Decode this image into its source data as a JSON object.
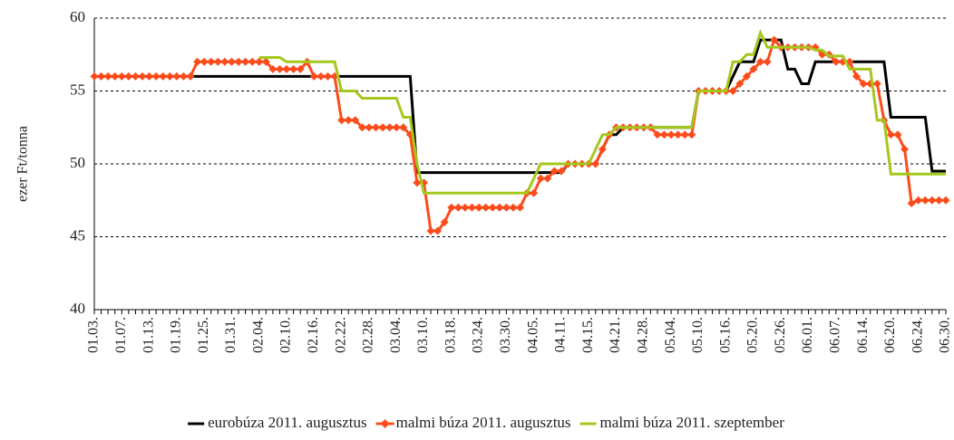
{
  "chart_data": {
    "type": "line",
    "y_label": "ezer Ft/tonna",
    "categories": [
      "01.03.",
      null,
      null,
      null,
      "01.07.",
      null,
      null,
      null,
      "01.13.",
      null,
      null,
      null,
      "01.19.",
      null,
      null,
      null,
      "01.25.",
      null,
      null,
      null,
      "01.31.",
      null,
      null,
      null,
      "02.04.",
      null,
      null,
      null,
      "02.10.",
      null,
      null,
      null,
      "02.16.",
      null,
      null,
      null,
      "02.22.",
      null,
      null,
      null,
      "02.28.",
      null,
      null,
      null,
      "03.04.",
      null,
      null,
      null,
      "03.10.",
      null,
      null,
      null,
      "03.18.",
      null,
      null,
      null,
      "03.24.",
      null,
      null,
      null,
      "03.30.",
      null,
      null,
      null,
      "04.05.",
      null,
      null,
      null,
      "04.11.",
      null,
      null,
      null,
      "04.15.",
      null,
      null,
      null,
      "04.21.",
      null,
      null,
      null,
      "04.28.",
      null,
      null,
      null,
      "05.04.",
      null,
      null,
      null,
      "05.10.",
      null,
      null,
      null,
      "05.16.",
      null,
      null,
      null,
      "05.20.",
      null,
      null,
      null,
      "05.26.",
      null,
      null,
      null,
      "06.01.",
      null,
      null,
      null,
      "06.07.",
      null,
      null,
      null,
      "06.14.",
      null,
      null,
      null,
      "06.20.",
      null,
      null,
      null,
      "06.24.",
      null,
      null,
      null,
      "06.30."
    ],
    "series": [
      {
        "name": "eurobúza 2011. augusztus",
        "color": "#000000",
        "width": 3,
        "values": [
          56,
          56,
          56,
          56,
          56,
          56,
          56,
          56,
          56,
          56,
          56,
          56,
          56,
          56,
          56,
          56,
          56,
          56,
          56,
          56,
          56,
          56,
          56,
          56,
          56,
          56,
          56,
          56,
          56,
          56,
          56,
          56,
          56,
          56,
          56,
          56,
          56,
          56,
          56,
          56,
          56,
          56,
          56,
          56,
          56,
          56,
          56,
          49.4,
          49.4,
          49.4,
          49.4,
          49.4,
          49.4,
          49.4,
          49.4,
          49.4,
          49.4,
          49.4,
          49.4,
          49.4,
          49.4,
          49.4,
          49.4,
          49.4,
          49.4,
          49.4,
          49.4,
          49.4,
          49.4,
          50,
          50,
          50,
          50,
          50,
          51,
          52,
          52,
          52.5,
          52.5,
          52.5,
          52.5,
          52.5,
          52.5,
          52.5,
          52.5,
          52.5,
          52.5,
          52.5,
          55,
          55,
          55,
          55,
          55,
          56,
          57,
          57,
          57,
          58.5,
          58.5,
          58.5,
          58.5,
          56.5,
          56.5,
          55.5,
          55.5,
          57,
          57,
          57,
          57,
          57,
          57,
          57,
          57,
          57,
          57,
          57,
          53.2,
          53.2,
          53.2,
          53.2,
          53.2,
          53.2,
          49.5,
          49.5,
          49.5
        ]
      },
      {
        "name": "malmi búza 2011. augusztus",
        "color": "#fc4c1c",
        "width": 3,
        "marker": "diamond",
        "values": [
          56,
          56,
          56,
          56,
          56,
          56,
          56,
          56,
          56,
          56,
          56,
          56,
          56,
          56,
          56,
          57,
          57,
          57,
          57,
          57,
          57,
          57,
          57,
          57,
          57,
          57,
          56.5,
          56.5,
          56.5,
          56.5,
          56.5,
          57,
          56,
          56,
          56,
          56,
          53,
          53,
          53,
          52.5,
          52.5,
          52.5,
          52.5,
          52.5,
          52.5,
          52.5,
          52,
          48.7,
          48.7,
          45.4,
          45.4,
          46,
          47,
          47,
          47,
          47,
          47,
          47,
          47,
          47,
          47,
          47,
          47,
          48,
          48,
          49,
          49,
          49.5,
          49.5,
          50,
          50,
          50,
          50,
          50,
          51,
          52,
          52.5,
          52.5,
          52.5,
          52.5,
          52.5,
          52.5,
          52,
          52,
          52,
          52,
          52,
          52,
          55,
          55,
          55,
          55,
          55,
          55,
          55.5,
          56,
          56.5,
          57,
          57,
          58.5,
          58,
          58,
          58,
          58,
          58,
          58,
          57.5,
          57.5,
          57,
          57,
          57,
          56,
          55.5,
          55.5,
          55.5,
          53,
          52,
          52,
          51,
          47.3,
          47.5,
          47.5,
          47.5,
          47.5,
          47.5
        ]
      },
      {
        "name": "malmi búza 2011. szeptember",
        "color": "#a4c81c",
        "width": 3,
        "values": [
          null,
          null,
          null,
          null,
          null,
          null,
          null,
          null,
          null,
          null,
          null,
          null,
          null,
          null,
          null,
          null,
          null,
          null,
          null,
          null,
          null,
          null,
          null,
          null,
          57.3,
          57.3,
          57.3,
          57.3,
          57,
          57,
          57,
          57,
          57,
          57,
          57,
          57,
          55,
          55,
          55,
          54.5,
          54.5,
          54.5,
          54.5,
          54.5,
          54.5,
          53.2,
          53.2,
          50,
          48,
          48,
          48,
          48,
          48,
          48,
          48,
          48,
          48,
          48,
          48,
          48,
          48,
          48,
          48,
          48,
          49,
          50,
          50,
          50,
          50,
          50,
          50,
          50,
          50,
          51,
          52,
          52,
          52.5,
          52.5,
          52.5,
          52.5,
          52.5,
          52.5,
          52.5,
          52.5,
          52.5,
          52.5,
          52.5,
          52.5,
          55,
          55,
          55,
          55,
          55,
          57,
          57,
          57.5,
          57.5,
          59,
          58,
          58,
          58,
          58,
          58,
          58,
          58,
          57.8,
          57.8,
          57.4,
          57.4,
          57.4,
          56.5,
          56.5,
          56.5,
          56.5,
          53,
          53,
          49.3,
          49.3,
          49.3,
          49.3,
          49.3,
          49.3,
          49.3,
          49.3,
          49.3
        ]
      }
    ],
    "ylim": [
      40,
      60
    ],
    "yticks": [
      40,
      45,
      50,
      55,
      60
    ],
    "grid": true,
    "legend": "bottom"
  }
}
